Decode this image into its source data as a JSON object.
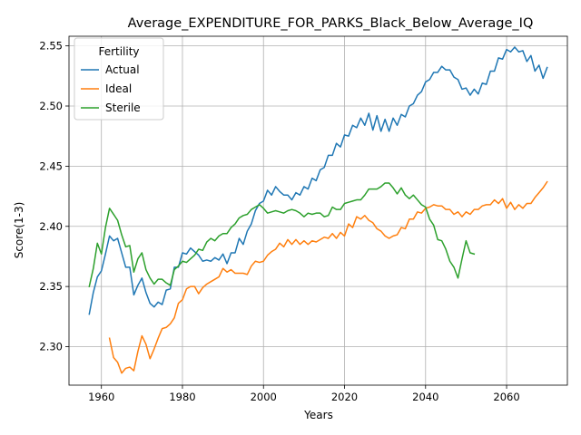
{
  "chart_data": {
    "type": "line",
    "title": "Average_EXPENDITURE_FOR_PARKS_Black_Below_Average_IQ",
    "xlabel": "Years",
    "ylabel": "Score(1-3)",
    "xlim": [
      1952,
      2075
    ],
    "ylim": [
      2.268,
      2.558
    ],
    "xticks": [
      1960,
      1980,
      2000,
      2020,
      2040,
      2060
    ],
    "yticks": [
      2.3,
      2.35,
      2.4,
      2.45,
      2.5,
      2.55
    ],
    "xtick_labels": [
      "1960",
      "1980",
      "2000",
      "2020",
      "2040",
      "2060"
    ],
    "ytick_labels": [
      "2.30",
      "2.35",
      "2.40",
      "2.45",
      "2.50",
      "2.55"
    ],
    "grid": true,
    "legend": {
      "title": "Fertility",
      "placement": "top-left"
    },
    "series": [
      {
        "name": "Actual",
        "color": "#1f77b4",
        "x": [
          1957,
          1958,
          1959,
          1960,
          1961,
          1962,
          1963,
          1964,
          1965,
          1966,
          1967,
          1968,
          1969,
          1970,
          1971,
          1972,
          1973,
          1974,
          1975,
          1976,
          1977,
          1978,
          1979,
          1980,
          1981,
          1982,
          1983,
          1984,
          1985,
          1986,
          1987,
          1988,
          1989,
          1990,
          1991,
          1992,
          1993,
          1994,
          1995,
          1996,
          1997,
          1998,
          1999,
          2000,
          2001,
          2002,
          2003,
          2004,
          2005,
          2006,
          2007,
          2008,
          2009,
          2010,
          2011,
          2012,
          2013,
          2014,
          2015,
          2016,
          2017,
          2018,
          2019,
          2020,
          2021,
          2022,
          2023,
          2024,
          2025,
          2026,
          2027,
          2028,
          2029,
          2030,
          2031,
          2032,
          2033,
          2034,
          2035,
          2036,
          2037,
          2038,
          2039,
          2040,
          2041,
          2042,
          2043,
          2044,
          2045,
          2046,
          2047,
          2048,
          2049,
          2050,
          2051,
          2052,
          2053,
          2054,
          2055,
          2056,
          2057,
          2058,
          2059,
          2060,
          2061,
          2062,
          2063,
          2064,
          2065,
          2066,
          2067,
          2068,
          2069,
          2070
        ],
        "values": [
          2.327,
          2.345,
          2.358,
          2.363,
          2.377,
          2.392,
          2.388,
          2.39,
          2.378,
          2.366,
          2.366,
          2.343,
          2.351,
          2.357,
          2.345,
          2.336,
          2.333,
          2.337,
          2.335,
          2.347,
          2.348,
          2.366,
          2.366,
          2.378,
          2.377,
          2.382,
          2.379,
          2.376,
          2.371,
          2.372,
          2.371,
          2.374,
          2.372,
          2.377,
          2.369,
          2.378,
          2.378,
          2.39,
          2.385,
          2.396,
          2.402,
          2.413,
          2.419,
          2.421,
          2.43,
          2.426,
          2.433,
          2.429,
          2.426,
          2.426,
          2.422,
          2.428,
          2.426,
          2.433,
          2.431,
          2.44,
          2.438,
          2.447,
          2.449,
          2.459,
          2.459,
          2.469,
          2.466,
          2.476,
          2.475,
          2.484,
          2.482,
          2.49,
          2.484,
          2.494,
          2.48,
          2.492,
          2.479,
          2.489,
          2.479,
          2.49,
          2.484,
          2.493,
          2.491,
          2.5,
          2.502,
          2.509,
          2.512,
          2.52,
          2.522,
          2.528,
          2.528,
          2.533,
          2.53,
          2.53,
          2.524,
          2.522,
          2.514,
          2.515,
          2.509,
          2.514,
          2.51,
          2.519,
          2.518,
          2.529,
          2.529,
          2.54,
          2.539,
          2.547,
          2.545,
          2.549,
          2.545,
          2.546,
          2.537,
          2.542,
          2.529,
          2.534,
          2.523,
          2.532
        ]
      },
      {
        "name": "Ideal",
        "color": "#ff7f0e",
        "x": [
          1962,
          1963,
          1964,
          1965,
          1966,
          1967,
          1968,
          1969,
          1970,
          1971,
          1972,
          1973,
          1974,
          1975,
          1976,
          1977,
          1978,
          1979,
          1980,
          1981,
          1982,
          1983,
          1984,
          1985,
          1986,
          1987,
          1988,
          1989,
          1990,
          1991,
          1992,
          1993,
          1994,
          1995,
          1996,
          1997,
          1998,
          1999,
          2000,
          2001,
          2002,
          2003,
          2004,
          2005,
          2006,
          2007,
          2008,
          2009,
          2010,
          2011,
          2012,
          2013,
          2014,
          2015,
          2016,
          2017,
          2018,
          2019,
          2020,
          2021,
          2022,
          2023,
          2024,
          2025,
          2026,
          2027,
          2028,
          2029,
          2030,
          2031,
          2032,
          2033,
          2034,
          2035,
          2036,
          2037,
          2038,
          2039,
          2040,
          2041,
          2042,
          2043,
          2044,
          2045,
          2046,
          2047,
          2048,
          2049,
          2050,
          2051,
          2052,
          2053,
          2054,
          2055,
          2056,
          2057,
          2058,
          2059,
          2060,
          2061,
          2062,
          2063,
          2064,
          2065,
          2066,
          2067,
          2068,
          2069,
          2070
        ],
        "values": [
          2.307,
          2.291,
          2.287,
          2.278,
          2.282,
          2.283,
          2.28,
          2.296,
          2.309,
          2.302,
          2.29,
          2.298,
          2.307,
          2.315,
          2.316,
          2.319,
          2.324,
          2.336,
          2.339,
          2.348,
          2.35,
          2.35,
          2.344,
          2.349,
          2.352,
          2.354,
          2.356,
          2.358,
          2.365,
          2.362,
          2.364,
          2.361,
          2.361,
          2.361,
          2.36,
          2.367,
          2.371,
          2.37,
          2.371,
          2.376,
          2.379,
          2.381,
          2.386,
          2.383,
          2.389,
          2.385,
          2.389,
          2.385,
          2.388,
          2.385,
          2.388,
          2.387,
          2.389,
          2.391,
          2.39,
          2.394,
          2.39,
          2.395,
          2.392,
          2.402,
          2.399,
          2.408,
          2.406,
          2.409,
          2.405,
          2.403,
          2.398,
          2.396,
          2.392,
          2.39,
          2.392,
          2.393,
          2.399,
          2.398,
          2.406,
          2.406,
          2.412,
          2.411,
          2.415,
          2.416,
          2.418,
          2.417,
          2.417,
          2.414,
          2.414,
          2.41,
          2.412,
          2.408,
          2.412,
          2.41,
          2.414,
          2.414,
          2.417,
          2.418,
          2.418,
          2.422,
          2.419,
          2.423,
          2.415,
          2.42,
          2.414,
          2.418,
          2.415,
          2.419,
          2.419,
          2.424,
          2.428,
          2.432,
          2.437
        ]
      },
      {
        "name": "Sterile",
        "color": "#2ca02c",
        "x": [
          1957,
          1958,
          1959,
          1960,
          1961,
          1962,
          1963,
          1964,
          1965,
          1966,
          1967,
          1968,
          1969,
          1970,
          1971,
          1972,
          1973,
          1974,
          1975,
          1976,
          1977,
          1978,
          1979,
          1980,
          1981,
          1982,
          1983,
          1984,
          1985,
          1986,
          1987,
          1988,
          1989,
          1990,
          1991,
          1992,
          1993,
          1994,
          1995,
          1996,
          1997,
          1998,
          1999,
          2000,
          2001,
          2002,
          2003,
          2004,
          2005,
          2006,
          2007,
          2008,
          2009,
          2010,
          2011,
          2012,
          2013,
          2014,
          2015,
          2016,
          2017,
          2018,
          2019,
          2020,
          2021,
          2022,
          2023,
          2024,
          2025,
          2026,
          2027,
          2028,
          2029,
          2030,
          2031,
          2032,
          2033,
          2034,
          2035,
          2036,
          2037,
          2038,
          2039,
          2040,
          2041,
          2042,
          2043,
          2044,
          2045,
          2046,
          2047,
          2048,
          2049,
          2050,
          2051,
          2052
        ],
        "values": [
          2.35,
          2.365,
          2.386,
          2.377,
          2.399,
          2.415,
          2.41,
          2.405,
          2.393,
          2.383,
          2.384,
          2.362,
          2.373,
          2.378,
          2.364,
          2.357,
          2.352,
          2.356,
          2.356,
          2.353,
          2.351,
          2.364,
          2.367,
          2.371,
          2.37,
          2.373,
          2.376,
          2.381,
          2.38,
          2.387,
          2.39,
          2.388,
          2.392,
          2.394,
          2.394,
          2.399,
          2.402,
          2.407,
          2.409,
          2.41,
          2.414,
          2.416,
          2.418,
          2.415,
          2.411,
          2.412,
          2.413,
          2.412,
          2.411,
          2.413,
          2.414,
          2.413,
          2.411,
          2.408,
          2.411,
          2.41,
          2.411,
          2.411,
          2.408,
          2.409,
          2.416,
          2.414,
          2.414,
          2.419,
          2.42,
          2.421,
          2.422,
          2.422,
          2.426,
          2.431,
          2.431,
          2.431,
          2.433,
          2.436,
          2.436,
          2.432,
          2.427,
          2.432,
          2.426,
          2.423,
          2.426,
          2.422,
          2.418,
          2.416,
          2.406,
          2.401,
          2.389,
          2.388,
          2.381,
          2.371,
          2.366,
          2.357,
          2.373,
          2.388,
          2.378,
          2.377
        ]
      }
    ]
  }
}
